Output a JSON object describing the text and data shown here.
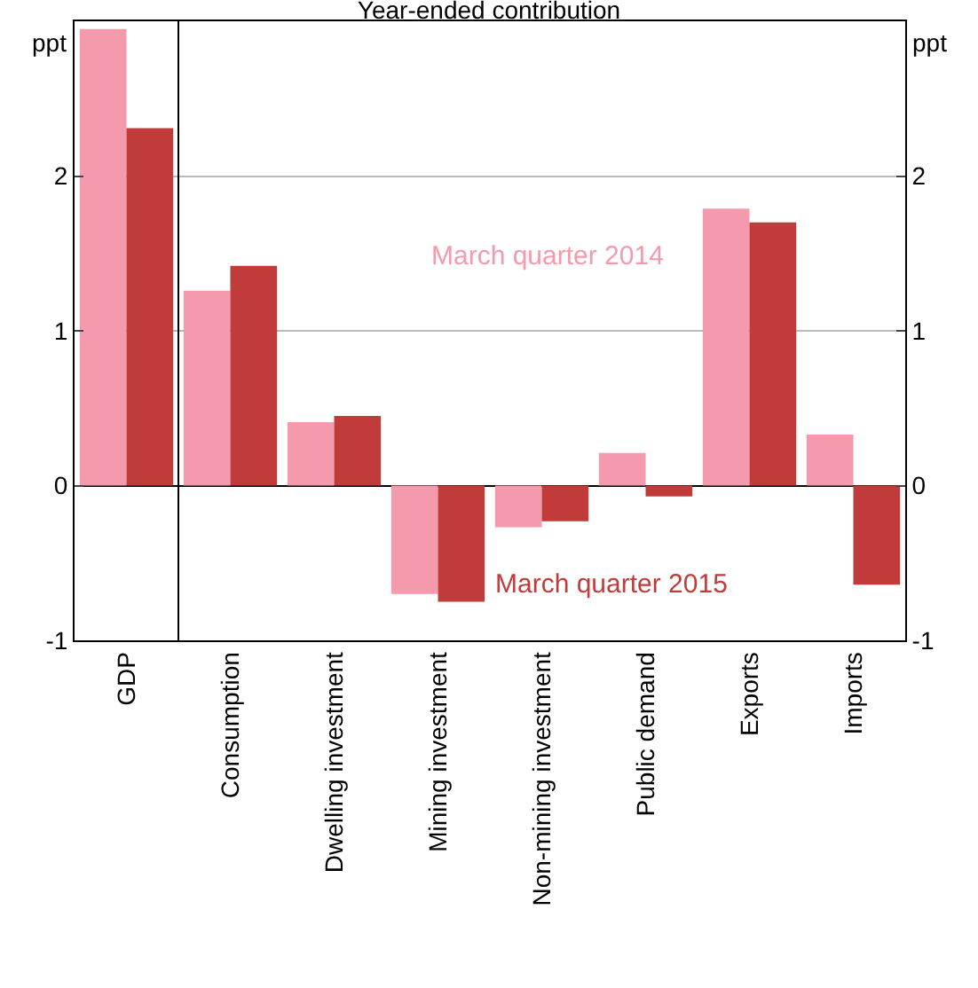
{
  "chart_data": {
    "type": "bar",
    "title": "Year-ended contribution",
    "ylabel": "ppt",
    "y2label": "ppt",
    "categories": [
      "GDP",
      "Consumption",
      "Dwelling investment",
      "Mining investment",
      "Non-mining investment",
      "Public demand",
      "Exports",
      "Imports"
    ],
    "series": [
      {
        "name": "March quarter 2014",
        "color": "#f49aac",
        "values": [
          2.95,
          1.26,
          0.41,
          -0.7,
          -0.27,
          0.21,
          1.79,
          0.33
        ]
      },
      {
        "name": "March quarter 2015",
        "color": "#c23b3b",
        "values": [
          2.31,
          1.42,
          0.45,
          -0.75,
          -0.23,
          -0.07,
          1.7,
          -0.64
        ]
      }
    ],
    "ylim": [
      -1,
      3
    ],
    "yticks": [
      -1,
      0,
      1,
      2
    ],
    "y2lim": [
      -1,
      3
    ],
    "y2ticks": [
      -1,
      0,
      1,
      2
    ],
    "grid": "y",
    "legend": false
  }
}
